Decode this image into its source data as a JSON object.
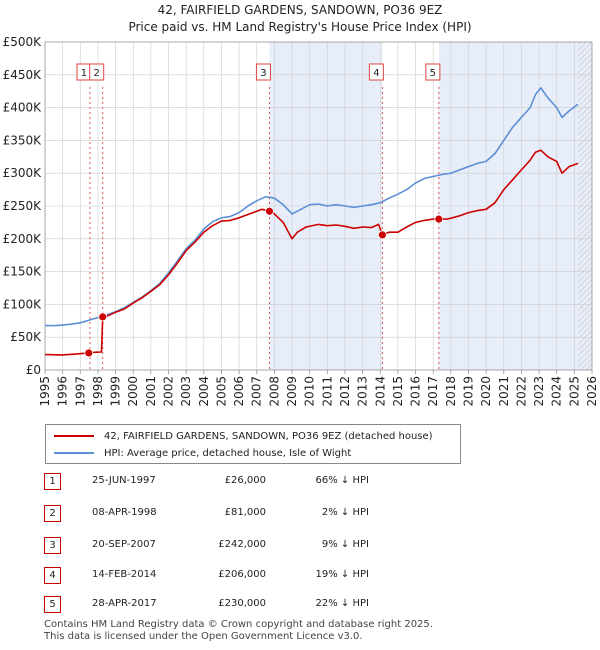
{
  "header": {
    "title": "42, FAIRFIELD GARDENS, SANDOWN, PO36 9EZ",
    "subtitle": "Price paid vs. HM Land Registry's House Price Index (HPI)"
  },
  "colors": {
    "property": "#cc0000",
    "hpi": "#5b8fd6",
    "shade": "#e8eef9",
    "vline": "#dd4444",
    "grid": "#cccccc"
  },
  "chart_data": {
    "type": "line",
    "title": "Price paid vs. HM Land Registry's House Price Index (HPI)",
    "xlim": [
      1995,
      2026
    ],
    "ylim": [
      0,
      500000
    ],
    "x_ticks": [
      "1995",
      "1996",
      "1997",
      "1998",
      "1999",
      "2000",
      "2001",
      "2002",
      "2003",
      "2004",
      "2005",
      "2006",
      "2007",
      "2008",
      "2009",
      "2010",
      "2011",
      "2012",
      "2013",
      "2014",
      "2015",
      "2016",
      "2017",
      "2018",
      "2019",
      "2020",
      "2021",
      "2022",
      "2023",
      "2024",
      "2025",
      "2026"
    ],
    "y_ticks": [
      {
        "v": 0,
        "label": "£0"
      },
      {
        "v": 50000,
        "label": "£50K"
      },
      {
        "v": 100000,
        "label": "£100K"
      },
      {
        "v": 150000,
        "label": "£150K"
      },
      {
        "v": 200000,
        "label": "£200K"
      },
      {
        "v": 250000,
        "label": "£250K"
      },
      {
        "v": 300000,
        "label": "£300K"
      },
      {
        "v": 350000,
        "label": "£350K"
      },
      {
        "v": 400000,
        "label": "£400K"
      },
      {
        "v": 450000,
        "label": "£450K"
      },
      {
        "v": 500000,
        "label": "£500K"
      }
    ],
    "shaded_ranges": [
      [
        2007.72,
        2014.12
      ],
      [
        2017.32,
        2026
      ]
    ],
    "series": [
      {
        "name": "42, FAIRFIELD GARDENS, SANDOWN, PO36 9EZ (detached house)",
        "points": [
          [
            1995.0,
            23500
          ],
          [
            1996.0,
            23000
          ],
          [
            1996.8,
            24500
          ],
          [
            1997.48,
            26000
          ],
          [
            1997.8,
            27000
          ],
          [
            1998.2,
            27500
          ],
          [
            1998.27,
            81000
          ],
          [
            1998.5,
            82000
          ],
          [
            1999.0,
            88000
          ],
          [
            1999.5,
            93000
          ],
          [
            2000.0,
            102000
          ],
          [
            2000.5,
            110000
          ],
          [
            2001.0,
            120000
          ],
          [
            2001.5,
            130000
          ],
          [
            2002.0,
            145000
          ],
          [
            2002.5,
            163000
          ],
          [
            2003.0,
            182000
          ],
          [
            2003.5,
            195000
          ],
          [
            2004.0,
            210000
          ],
          [
            2004.5,
            220000
          ],
          [
            2005.0,
            227000
          ],
          [
            2005.5,
            228000
          ],
          [
            2006.0,
            232000
          ],
          [
            2006.5,
            237000
          ],
          [
            2007.0,
            242000
          ],
          [
            2007.3,
            245000
          ],
          [
            2007.72,
            242000
          ],
          [
            2008.0,
            238000
          ],
          [
            2008.5,
            225000
          ],
          [
            2009.0,
            200000
          ],
          [
            2009.3,
            210000
          ],
          [
            2009.8,
            218000
          ],
          [
            2010.5,
            222000
          ],
          [
            2011.0,
            220000
          ],
          [
            2011.5,
            221000
          ],
          [
            2012.0,
            219000
          ],
          [
            2012.5,
            216000
          ],
          [
            2013.0,
            218000
          ],
          [
            2013.5,
            217000
          ],
          [
            2013.9,
            222000
          ],
          [
            2014.12,
            206000
          ],
          [
            2014.5,
            210000
          ],
          [
            2015.0,
            210000
          ],
          [
            2015.5,
            218000
          ],
          [
            2016.0,
            225000
          ],
          [
            2016.5,
            228000
          ],
          [
            2017.0,
            230000
          ],
          [
            2017.32,
            230000
          ],
          [
            2017.8,
            230000
          ],
          [
            2018.5,
            235000
          ],
          [
            2019.0,
            240000
          ],
          [
            2019.5,
            243000
          ],
          [
            2020.0,
            245000
          ],
          [
            2020.5,
            255000
          ],
          [
            2021.0,
            275000
          ],
          [
            2021.5,
            290000
          ],
          [
            2022.0,
            305000
          ],
          [
            2022.5,
            320000
          ],
          [
            2022.8,
            332000
          ],
          [
            2023.1,
            335000
          ],
          [
            2023.5,
            325000
          ],
          [
            2024.0,
            318000
          ],
          [
            2024.3,
            300000
          ],
          [
            2024.7,
            310000
          ],
          [
            2025.2,
            315000
          ]
        ]
      },
      {
        "name": "HPI: Average price, detached house, Isle of Wight",
        "points": [
          [
            1995.0,
            68000
          ],
          [
            1995.5,
            67500
          ],
          [
            1996.0,
            68500
          ],
          [
            1996.5,
            70000
          ],
          [
            1997.0,
            72000
          ],
          [
            1997.5,
            76000
          ],
          [
            1998.0,
            80000
          ],
          [
            1998.5,
            84000
          ],
          [
            1999.0,
            89000
          ],
          [
            1999.5,
            95000
          ],
          [
            2000.0,
            103000
          ],
          [
            2000.5,
            111000
          ],
          [
            2001.0,
            121000
          ],
          [
            2001.5,
            132000
          ],
          [
            2002.0,
            148000
          ],
          [
            2002.5,
            166000
          ],
          [
            2003.0,
            185000
          ],
          [
            2003.5,
            198000
          ],
          [
            2004.0,
            215000
          ],
          [
            2004.5,
            226000
          ],
          [
            2005.0,
            232000
          ],
          [
            2005.5,
            234000
          ],
          [
            2006.0,
            240000
          ],
          [
            2006.5,
            250000
          ],
          [
            2007.0,
            258000
          ],
          [
            2007.5,
            264000
          ],
          [
            2008.0,
            262000
          ],
          [
            2008.5,
            252000
          ],
          [
            2009.0,
            238000
          ],
          [
            2009.5,
            245000
          ],
          [
            2010.0,
            252000
          ],
          [
            2010.5,
            253000
          ],
          [
            2011.0,
            250000
          ],
          [
            2011.5,
            252000
          ],
          [
            2012.0,
            250000
          ],
          [
            2012.5,
            248000
          ],
          [
            2013.0,
            250000
          ],
          [
            2013.5,
            252000
          ],
          [
            2014.0,
            255000
          ],
          [
            2014.5,
            262000
          ],
          [
            2015.0,
            268000
          ],
          [
            2015.5,
            275000
          ],
          [
            2016.0,
            285000
          ],
          [
            2016.5,
            292000
          ],
          [
            2017.0,
            295000
          ],
          [
            2017.5,
            298000
          ],
          [
            2018.0,
            300000
          ],
          [
            2018.5,
            305000
          ],
          [
            2019.0,
            310000
          ],
          [
            2019.5,
            315000
          ],
          [
            2020.0,
            318000
          ],
          [
            2020.5,
            330000
          ],
          [
            2021.0,
            350000
          ],
          [
            2021.5,
            370000
          ],
          [
            2022.0,
            385000
          ],
          [
            2022.5,
            400000
          ],
          [
            2022.8,
            420000
          ],
          [
            2023.1,
            430000
          ],
          [
            2023.5,
            415000
          ],
          [
            2024.0,
            400000
          ],
          [
            2024.3,
            385000
          ],
          [
            2024.7,
            395000
          ],
          [
            2025.2,
            405000
          ]
        ]
      }
    ],
    "sales": [
      {
        "label": "1",
        "x": 1997.48,
        "y": 26000,
        "marker_x": 1997.55
      },
      {
        "label": "2",
        "x": 1998.27,
        "y": 81000,
        "marker_x": 1998.27
      },
      {
        "label": "3",
        "x": 2007.72,
        "y": 242000,
        "marker_x": 2007.72
      },
      {
        "label": "4",
        "x": 2014.12,
        "y": 206000,
        "marker_x": 2014.12
      },
      {
        "label": "5",
        "x": 2017.32,
        "y": 230000,
        "marker_x": 2017.32
      }
    ]
  },
  "legend": [
    {
      "label": "42, FAIRFIELD GARDENS, SANDOWN, PO36 9EZ (detached house)",
      "color": "#cc0000"
    },
    {
      "label": "HPI: Average price, detached house, Isle of Wight",
      "color": "#5b8fd6"
    }
  ],
  "transactions": [
    {
      "num": "1",
      "date": "25-JUN-1997",
      "price": "£26,000",
      "hpi": "66% ↓ HPI"
    },
    {
      "num": "2",
      "date": "08-APR-1998",
      "price": "£81,000",
      "hpi": "2% ↓ HPI"
    },
    {
      "num": "3",
      "date": "20-SEP-2007",
      "price": "£242,000",
      "hpi": "9% ↓ HPI"
    },
    {
      "num": "4",
      "date": "14-FEB-2014",
      "price": "£206,000",
      "hpi": "19% ↓ HPI"
    },
    {
      "num": "5",
      "date": "28-APR-2017",
      "price": "£230,000",
      "hpi": "22% ↓ HPI"
    }
  ],
  "footer": {
    "line1": "Contains HM Land Registry data © Crown copyright and database right 2025.",
    "line2": "This data is licensed under the Open Government Licence v3.0."
  }
}
